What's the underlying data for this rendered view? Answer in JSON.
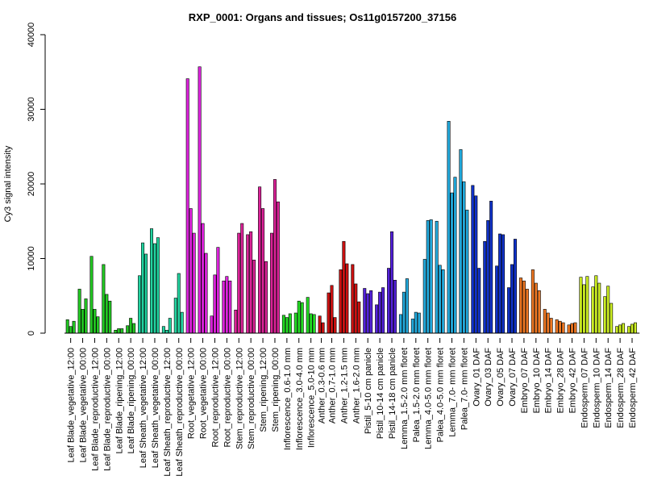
{
  "chart_data": {
    "type": "bar",
    "title": "RXP_0001: Organs and tissues; Os11g0157200_37156",
    "xlabel": "",
    "ylabel": "Cy3 signal intensity",
    "ylim": [
      0,
      40000
    ],
    "yticks": [
      0,
      10000,
      20000,
      30000,
      40000
    ],
    "grid": false,
    "legend": "none",
    "groups": [
      {
        "color": "#22c722",
        "values": [
          1800,
          900,
          1600
        ]
      },
      {
        "color": "#22c722",
        "values": [
          5900,
          3200,
          4600
        ]
      },
      {
        "color": "#22c722",
        "values": [
          10300,
          3200,
          2200
        ]
      },
      {
        "color": "#22c722",
        "values": [
          9200,
          5200,
          4300
        ]
      },
      {
        "color": "#22c722",
        "values": [
          400,
          600,
          600
        ]
      },
      {
        "color": "#22c722",
        "values": [
          1000,
          2000,
          1300
        ]
      },
      {
        "color": "#22d4a0",
        "values": [
          7700,
          12100,
          10600
        ]
      },
      {
        "color": "#22d4a0",
        "values": [
          14000,
          12000,
          12800
        ]
      },
      {
        "color": "#22d4a0",
        "values": [
          900,
          400,
          2000
        ]
      },
      {
        "color": "#22d4a0",
        "values": [
          4700,
          8000,
          2800
        ]
      },
      {
        "color": "#dd22dd",
        "values": [
          34100,
          16700,
          13400
        ]
      },
      {
        "color": "#dd22dd",
        "values": [
          35700,
          14700,
          10700
        ]
      },
      {
        "color": "#dd22dd",
        "values": [
          2300,
          7800,
          11500
        ]
      },
      {
        "color": "#dd22dd",
        "values": [
          7000,
          7600,
          7000
        ]
      },
      {
        "color": "#dd2299",
        "values": [
          3100,
          13400,
          14700
        ]
      },
      {
        "color": "#dd2299",
        "values": [
          13200,
          13600,
          9800
        ]
      },
      {
        "color": "#dd2299",
        "values": [
          19600,
          16700,
          9600
        ]
      },
      {
        "color": "#dd2299",
        "values": [
          13400,
          20600,
          17600
        ]
      },
      {
        "color": "#22dd22",
        "values": [
          2400,
          2100,
          2600
        ]
      },
      {
        "color": "#22dd22",
        "values": [
          2700,
          4300,
          4100
        ]
      },
      {
        "color": "#22dd22",
        "values": [
          4800,
          2600,
          2500
        ]
      },
      {
        "color": "#cc1111",
        "values": [
          2300,
          1400
        ]
      },
      {
        "color": "#cc1111",
        "values": [
          5400,
          6400,
          2100
        ]
      },
      {
        "color": "#cc1111",
        "values": [
          8500,
          12300,
          9300
        ]
      },
      {
        "color": "#cc1111",
        "values": [
          9200,
          6600,
          4200
        ]
      },
      {
        "color": "#5522dd",
        "values": [
          6000,
          5300,
          5700
        ]
      },
      {
        "color": "#5522dd",
        "values": [
          3800,
          5500,
          6100
        ]
      },
      {
        "color": "#5522dd",
        "values": [
          8700,
          13600,
          7100
        ]
      },
      {
        "color": "#22aadd",
        "values": [
          2500,
          5500,
          7300
        ]
      },
      {
        "color": "#22aadd",
        "values": [
          1900,
          2800,
          2700
        ]
      },
      {
        "color": "#22aadd",
        "values": [
          9900,
          15100,
          15200
        ]
      },
      {
        "color": "#22aadd",
        "values": [
          15000,
          9100,
          8500
        ]
      },
      {
        "color": "#22aadd",
        "values": [
          28400,
          18800,
          20900
        ]
      },
      {
        "color": "#22aadd",
        "values": [
          24600,
          20300,
          16500
        ]
      },
      {
        "color": "#1133cc",
        "values": [
          19800,
          18400,
          8700
        ]
      },
      {
        "color": "#1133cc",
        "values": [
          12300,
          15100,
          17700
        ]
      },
      {
        "color": "#1133cc",
        "values": [
          9000,
          13300,
          13200
        ]
      },
      {
        "color": "#1133cc",
        "values": [
          6100,
          9200,
          12600
        ]
      },
      {
        "color": "#ee7722",
        "values": [
          7400,
          7000,
          5900
        ]
      },
      {
        "color": "#ee7722",
        "values": [
          8500,
          6700,
          5700
        ]
      },
      {
        "color": "#ee7722",
        "values": [
          3200,
          2700,
          2000
        ]
      },
      {
        "color": "#ee7722",
        "values": [
          1800,
          1600,
          1400
        ]
      },
      {
        "color": "#ee7722",
        "values": [
          1100,
          1300,
          1400
        ]
      },
      {
        "color": "#ccee22",
        "values": [
          7500,
          6500,
          7600
        ]
      },
      {
        "color": "#ccee22",
        "values": [
          6200,
          7700,
          6700
        ]
      },
      {
        "color": "#ccee22",
        "values": [
          4900,
          6300,
          4000
        ]
      },
      {
        "color": "#ccee22",
        "values": [
          900,
          1100,
          1300
        ]
      },
      {
        "color": "#ccee22",
        "values": [
          900,
          1200,
          1400
        ]
      }
    ],
    "tick_labels": [
      "Leaf Blade_vegetative_12:00",
      "Leaf Blade_vegetative_00:00",
      "Leaf Blade_reproductive_12:00",
      "Leaf Blade_reproductive_00:00",
      "Leaf Blade_ripening_12:00",
      "Leaf Blade_ripening_00:00",
      "Leaf Sheath_vegetative_12:00",
      "Leaf Sheath_vegetative_00:00",
      "Leaf Sheath_reproductive_12:00",
      "Leaf Sheath_reproductive_00:00",
      "Root_vegetative_12:00",
      "Root_vegetative_00:00",
      "Root_reproductive_12:00",
      "Root_reproductive_00:00",
      "Stem_reproductive_12:00",
      "Stem_reproductive_00:00",
      "Stem_ripening_12:00",
      "Stem_ripening_00:00",
      "Inflorescence_0.6-1.0 mm",
      "Inflorescence_3.0-4.0 mm",
      "Inflorescence_5.0-10 mm",
      "Anther_0.3-0.6 mm",
      "Anther_0.7-1.0 mm",
      "Anther_1.2-1.5 mm",
      "Anther_1.6-2.0 mm",
      "Pistil_5-10 cm panicle",
      "Pistil_10-14 cm panicle",
      "Pistil_14-18 cm panicle",
      "Lemma_1.5-2.0 mm floret",
      "Palea_1.5-2.0 mm floret",
      "Lemma_4.0-5.0 mm floret",
      "Palea_4.0-5.0 mm floret",
      "Lemma_7.0- mm floret",
      "Palea_7.0- mm floret",
      "Ovary_01 DAF",
      "Ovary_03 DAF",
      "Ovary_05 DAF",
      "Ovary_07 DAF",
      "Embryo_07 DAF",
      "Embryo_10 DAF",
      "Embryo_14 DAF",
      "Embryo_28 DAF",
      "Embryo_42 DAF",
      "Endosperm_07 DAF",
      "Endosperm_10 DAF",
      "Endosperm_14 DAF",
      "Endosperm_28 DAF",
      "Endosperm_42 DAF"
    ]
  }
}
